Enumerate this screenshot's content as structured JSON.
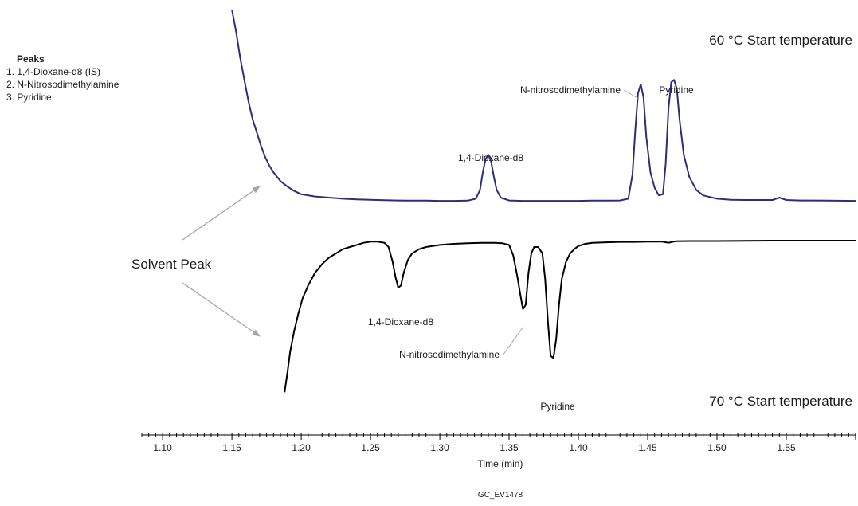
{
  "chart_data": {
    "type": "line",
    "xlabel": "Time (min)",
    "xlim": [
      1.085,
      1.6
    ],
    "x_ticks": [
      1.1,
      1.15,
      1.2,
      1.25,
      1.3,
      1.35,
      1.4,
      1.45,
      1.5,
      1.55
    ],
    "x_tick_labels": [
      "1.10",
      "1.15",
      "1.20",
      "1.25",
      "1.30",
      "1.35",
      "1.40",
      "1.45",
      "1.50",
      "1.55"
    ],
    "grid": false,
    "footer": "GC_EV1478",
    "legend": {
      "title": "Peaks",
      "items": [
        "1. 1,4-Dioxane-d8 (IS)",
        "2. N-Nitrosodimethylamine",
        "3. Pyridine"
      ]
    },
    "series": [
      {
        "name": "60 °C Start temperature",
        "color": "#2b2f7a",
        "x": [
          1.15,
          1.153,
          1.156,
          1.159,
          1.162,
          1.165,
          1.168,
          1.171,
          1.174,
          1.177,
          1.18,
          1.185,
          1.19,
          1.195,
          1.2,
          1.21,
          1.22,
          1.23,
          1.24,
          1.25,
          1.26,
          1.27,
          1.28,
          1.29,
          1.3,
          1.31,
          1.32,
          1.326,
          1.329,
          1.331,
          1.333,
          1.335,
          1.337,
          1.339,
          1.341,
          1.344,
          1.35,
          1.36,
          1.37,
          1.38,
          1.39,
          1.4,
          1.41,
          1.42,
          1.43,
          1.436,
          1.439,
          1.441,
          1.443,
          1.445,
          1.447,
          1.449,
          1.452,
          1.455,
          1.458,
          1.461,
          1.463,
          1.465,
          1.467,
          1.469,
          1.471,
          1.473,
          1.476,
          1.48,
          1.485,
          1.49,
          1.5,
          1.51,
          1.52,
          1.53,
          1.54,
          1.545,
          1.55,
          1.56,
          1.58,
          1.6
        ],
        "y": [
          1.0,
          0.9,
          0.78,
          0.68,
          0.58,
          0.5,
          0.44,
          0.38,
          0.33,
          0.29,
          0.26,
          0.22,
          0.195,
          0.175,
          0.16,
          0.15,
          0.145,
          0.14,
          0.137,
          0.135,
          0.133,
          0.132,
          0.131,
          0.131,
          0.13,
          0.13,
          0.131,
          0.14,
          0.18,
          0.26,
          0.32,
          0.34,
          0.31,
          0.24,
          0.18,
          0.145,
          0.132,
          0.13,
          0.13,
          0.13,
          0.13,
          0.13,
          0.131,
          0.131,
          0.132,
          0.14,
          0.25,
          0.45,
          0.62,
          0.66,
          0.6,
          0.42,
          0.26,
          0.19,
          0.155,
          0.16,
          0.3,
          0.55,
          0.67,
          0.68,
          0.64,
          0.5,
          0.34,
          0.24,
          0.18,
          0.155,
          0.14,
          0.135,
          0.134,
          0.134,
          0.134,
          0.145,
          0.134,
          0.132,
          0.131,
          0.13
        ]
      },
      {
        "name": "70 °C Start temperature",
        "color": "#000000",
        "x": [
          1.188,
          1.19,
          1.192,
          1.195,
          1.198,
          1.201,
          1.205,
          1.21,
          1.215,
          1.22,
          1.225,
          1.23,
          1.235,
          1.24,
          1.245,
          1.25,
          1.255,
          1.26,
          1.263,
          1.266,
          1.268,
          1.27,
          1.272,
          1.274,
          1.277,
          1.28,
          1.285,
          1.29,
          1.3,
          1.31,
          1.32,
          1.33,
          1.34,
          1.345,
          1.35,
          1.353,
          1.356,
          1.358,
          1.36,
          1.362,
          1.364,
          1.366,
          1.368,
          1.371,
          1.374,
          1.376,
          1.378,
          1.38,
          1.382,
          1.384,
          1.386,
          1.388,
          1.391,
          1.394,
          1.397,
          1.4,
          1.405,
          1.41,
          1.42,
          1.43,
          1.44,
          1.45,
          1.46,
          1.465,
          1.47,
          1.48,
          1.5,
          1.52,
          1.54,
          1.56,
          1.58,
          1.6
        ],
        "y": [
          -0.71,
          -0.62,
          -0.52,
          -0.42,
          -0.34,
          -0.27,
          -0.21,
          -0.15,
          -0.11,
          -0.08,
          -0.06,
          -0.04,
          -0.03,
          -0.02,
          -0.01,
          -0.005,
          -0.005,
          -0.01,
          -0.03,
          -0.1,
          -0.17,
          -0.22,
          -0.21,
          -0.15,
          -0.09,
          -0.06,
          -0.04,
          -0.03,
          -0.02,
          -0.015,
          -0.012,
          -0.01,
          -0.01,
          -0.012,
          -0.02,
          -0.07,
          -0.17,
          -0.25,
          -0.32,
          -0.3,
          -0.15,
          -0.06,
          -0.03,
          -0.03,
          -0.06,
          -0.18,
          -0.38,
          -0.54,
          -0.55,
          -0.46,
          -0.3,
          -0.18,
          -0.1,
          -0.06,
          -0.04,
          -0.025,
          -0.015,
          -0.01,
          -0.008,
          -0.006,
          -0.006,
          -0.005,
          -0.004,
          -0.01,
          -0.003,
          -0.002,
          -0.002,
          -0.001,
          0.0,
          0.0,
          0.0,
          0.0
        ]
      }
    ],
    "annotations": {
      "solvent_peak": "Solvent Peak",
      "temp_60": "60 °C Start temperature",
      "temp_70": "70 °C Start temperature",
      "top_dioxane": "1,4-Dioxane-d8",
      "top_ndma": "N-nitrosodimethylamine",
      "top_pyridine": "Pyridine",
      "bot_dioxane": "1,4-Dioxane-d8",
      "bot_ndma": "N-nitrosodimethylamine",
      "bot_pyridine": "Pyridine"
    }
  }
}
